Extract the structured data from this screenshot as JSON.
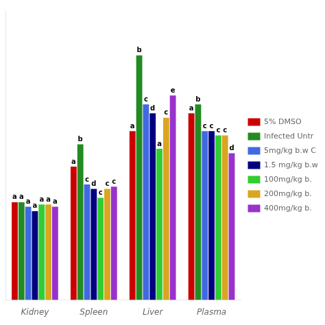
{
  "chart_data": {
    "type": "bar",
    "categories": [
      "Kidney",
      "Spleen",
      "Liver",
      "Plasma"
    ],
    "series": [
      {
        "name": "5% DMSO",
        "color": "#cc0000",
        "values": [
          2.2,
          3.0,
          3.8,
          4.2
        ],
        "annotations": [
          "a",
          "a",
          "a",
          "a"
        ]
      },
      {
        "name": "Infected Untr",
        "color": "#228B22",
        "values": [
          2.2,
          3.5,
          5.5,
          4.4
        ],
        "annotations": [
          "a",
          "b",
          "b",
          "b"
        ]
      },
      {
        "name": "5mg/kg b.w C",
        "color": "#4169E1",
        "values": [
          2.1,
          2.6,
          4.4,
          3.8
        ],
        "annotations": [
          "a",
          "c",
          "c",
          "c"
        ]
      },
      {
        "name": "1.5 mg/kg b.w",
        "color": "#000080",
        "values": [
          2.0,
          2.5,
          4.2,
          3.8
        ],
        "annotations": [
          "a",
          "d",
          "d",
          "c"
        ]
      },
      {
        "name": "100mg/kg b.",
        "color": "#32CD32",
        "values": [
          2.15,
          2.3,
          3.4,
          3.7
        ],
        "annotations": [
          "a",
          "c",
          "a",
          "c"
        ]
      },
      {
        "name": "200mg/kg b.",
        "color": "#DAA520",
        "values": [
          2.15,
          2.5,
          4.1,
          3.7
        ],
        "annotations": [
          "a",
          "c",
          "c",
          "c"
        ]
      },
      {
        "name": "400mg/kg b.",
        "color": "#9932CC",
        "values": [
          2.1,
          2.55,
          4.6,
          3.3
        ],
        "annotations": [
          "a",
          "c",
          "e",
          "d"
        ]
      }
    ],
    "ylim": [
      0,
      6.5
    ],
    "grid": false,
    "legend": "right",
    "tick_labels": "x"
  }
}
